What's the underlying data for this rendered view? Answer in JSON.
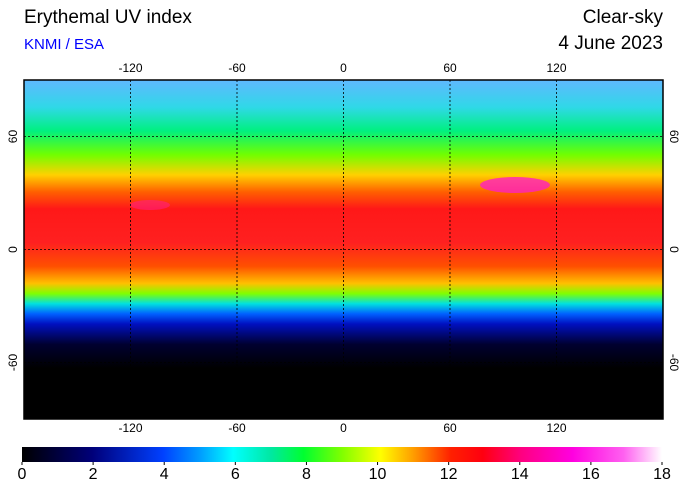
{
  "header": {
    "title": "Erythemal UV index",
    "source": "KNMI / ESA",
    "condition": "Clear-sky",
    "date": "4 June 2023"
  },
  "map": {
    "lon_range": [
      -180,
      180
    ],
    "lat_range": [
      -90,
      90
    ],
    "lon_ticks": [
      -120,
      -60,
      0,
      60,
      120
    ],
    "lat_ticks": [
      -60,
      0,
      60
    ]
  },
  "colorbar": {
    "range": [
      0,
      18
    ],
    "ticks": [
      0,
      2,
      4,
      6,
      8,
      10,
      12,
      14,
      16,
      18
    ]
  }
}
